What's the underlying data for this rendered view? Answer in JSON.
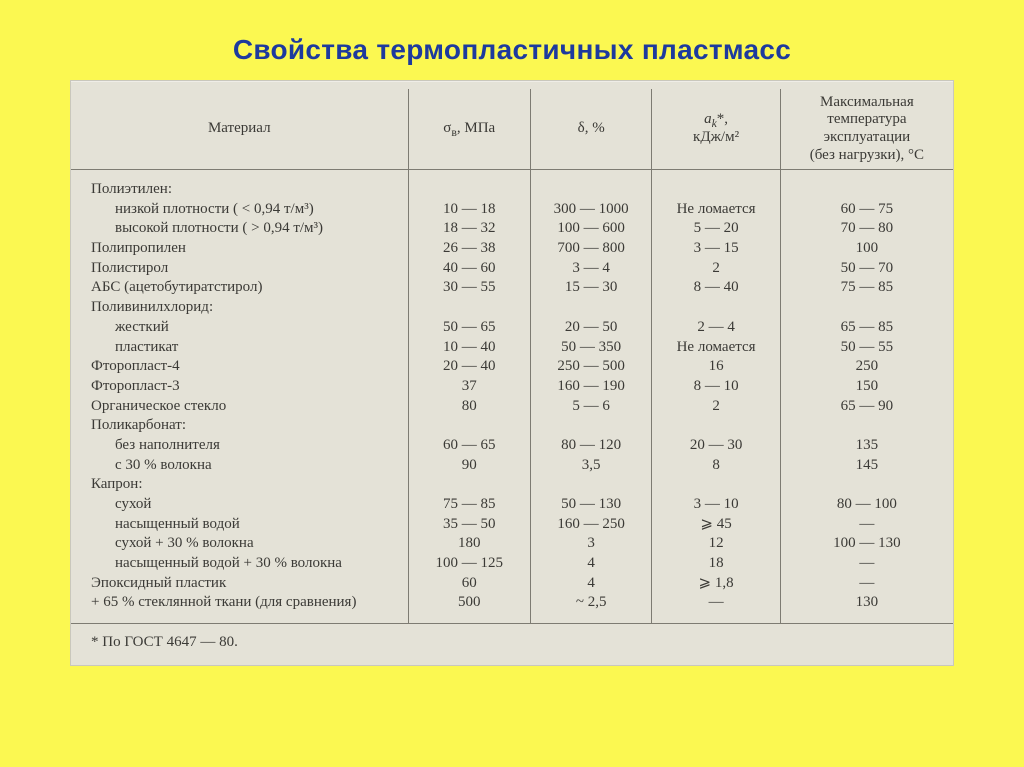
{
  "slide": {
    "title": "Свойства термопластичных пластмасс",
    "background_color": "#fbf851",
    "title_color": "#1d3a9e",
    "scan_bg": "#e4e2d7"
  },
  "table": {
    "headers": {
      "material": "Материал",
      "sigma": "σ_в, МПа",
      "delta": "δ, %",
      "ak": "a_k*, кДж/м²",
      "tmax_l1": "Максимальная",
      "tmax_l2": "температура",
      "tmax_l3": "эксплуатации",
      "tmax_l4": "(без нагрузки), °C"
    },
    "rows": [
      {
        "mat": "Полиэтилен:",
        "indent": 0,
        "v": [
          "",
          "",
          "",
          ""
        ]
      },
      {
        "mat": "низкой плотности  ( < 0,94  т/м³)",
        "indent": 1,
        "v": [
          "10 — 18",
          "300 — 1000",
          "Не ломается",
          "60 — 75"
        ]
      },
      {
        "mat": "высокой плотности ( > 0,94  т/м³)",
        "indent": 1,
        "v": [
          "18 — 32",
          "100 — 600",
          "5 — 20",
          "70 — 80"
        ]
      },
      {
        "mat": "Полипропилен",
        "indent": 0,
        "v": [
          "26 — 38",
          "700 — 800",
          "3 — 15",
          "100"
        ]
      },
      {
        "mat": "Полистирол",
        "indent": 0,
        "v": [
          "40 — 60",
          "3 — 4",
          "2",
          "50 — 70"
        ]
      },
      {
        "mat": "АБС (ацетобутиратстирол)",
        "indent": 0,
        "v": [
          "30 — 55",
          "15 — 30",
          "8 — 40",
          "75 — 85"
        ]
      },
      {
        "mat": "Поливинилхлорид:",
        "indent": 0,
        "v": [
          "",
          "",
          "",
          ""
        ]
      },
      {
        "mat": "жесткий",
        "indent": 1,
        "v": [
          "50 — 65",
          "20 — 50",
          "2 — 4",
          "65 — 85"
        ]
      },
      {
        "mat": "пластикат",
        "indent": 1,
        "v": [
          "10 — 40",
          "50 — 350",
          "Не ломается",
          "50 — 55"
        ]
      },
      {
        "mat": "Фторопласт-4",
        "indent": 0,
        "v": [
          "20 — 40",
          "250 — 500",
          "16",
          "250"
        ]
      },
      {
        "mat": "Фторопласт-3",
        "indent": 0,
        "v": [
          "37",
          "160 — 190",
          "8 — 10",
          "150"
        ]
      },
      {
        "mat": "Органическое стекло",
        "indent": 0,
        "v": [
          "80",
          "5 — 6",
          "2",
          "65 — 90"
        ]
      },
      {
        "mat": "Поликарбонат:",
        "indent": 0,
        "v": [
          "",
          "",
          "",
          ""
        ]
      },
      {
        "mat": "без наполнителя",
        "indent": 1,
        "v": [
          "60 — 65",
          "80 — 120",
          "20 — 30",
          "135"
        ]
      },
      {
        "mat": "с 30 % волокна",
        "indent": 1,
        "v": [
          "90",
          "3,5",
          "8",
          "145"
        ]
      },
      {
        "mat": "Капрон:",
        "indent": 0,
        "v": [
          "",
          "",
          "",
          ""
        ]
      },
      {
        "mat": "сухой",
        "indent": 1,
        "v": [
          "75 — 85",
          "50 — 130",
          "3 — 10",
          "80 — 100"
        ]
      },
      {
        "mat": "насыщенный водой",
        "indent": 1,
        "v": [
          "35 — 50",
          "160 — 250",
          "⩾ 45",
          "—"
        ]
      },
      {
        "mat": "сухой + 30 % волокна",
        "indent": 1,
        "v": [
          "180",
          "3",
          "12",
          "100 — 130"
        ]
      },
      {
        "mat": "насыщенный водой + 30 % волокна",
        "indent": 1,
        "v": [
          "100 — 125",
          "4",
          "18",
          "—"
        ]
      },
      {
        "mat": "Эпоксидный пластик",
        "indent": 0,
        "v": [
          "60",
          "4",
          "⩾ 1,8",
          "—"
        ]
      },
      {
        "mat": "+ 65 % стеклянной ткани (для сравнения)",
        "indent": 0,
        "v": [
          "500",
          "~ 2,5",
          "—",
          "130"
        ]
      }
    ],
    "footnote": "* По ГОСТ 4647 — 80."
  }
}
